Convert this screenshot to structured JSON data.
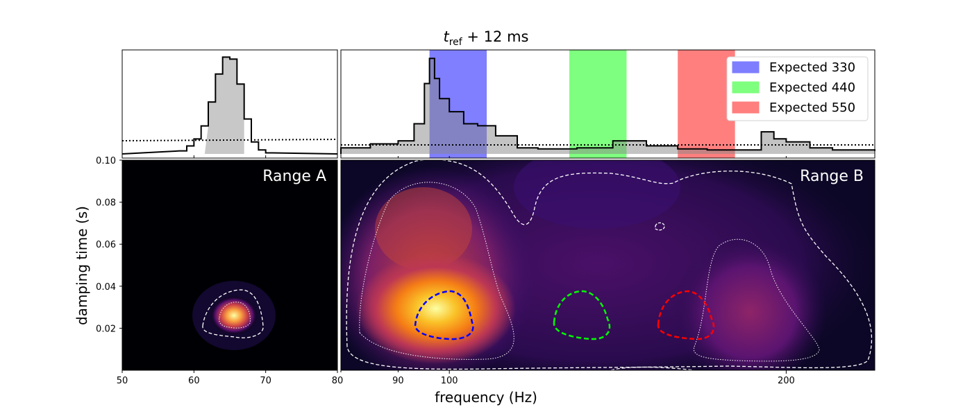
{
  "chart_data": {
    "type": "heatmap",
    "title_main": "t",
    "title_sub": "ref",
    "title_rest": " + 12 ms",
    "xlabel": "frequency (Hz)",
    "ylabel": "damping time (s)",
    "ylim": [
      0,
      0.1
    ],
    "y_ticks": [
      "0.02",
      "0.04",
      "0.06",
      "0.08",
      "0.10"
    ],
    "colormap": "inferno",
    "panel_a": {
      "label": "Range A",
      "xlim": [
        50,
        80
      ],
      "x_ticks": [
        "50",
        "60",
        "70",
        "80"
      ],
      "density_peak": {
        "frequency": 64.5,
        "damping_time": 0.026
      },
      "marginal_histogram": {
        "bins_hz": [
          58,
          59,
          60,
          61,
          62,
          63,
          64,
          65,
          66,
          67,
          68,
          69,
          70
        ],
        "density": [
          0.03,
          0.08,
          0.15,
          0.28,
          0.52,
          0.8,
          0.97,
          0.95,
          0.7,
          0.35,
          0.12,
          0.04,
          0.01
        ],
        "credible_interval_hz": [
          61.5,
          67
        ]
      }
    },
    "panel_b": {
      "label": "Range B",
      "xlim": [
        80,
        240
      ],
      "x_ticks": [
        "80",
        "90",
        "100",
        "200"
      ],
      "x_scale": "log",
      "density_peak": {
        "frequency": 98,
        "damping_time": 0.027
      },
      "marginal_histogram": {
        "bins_hz": [
          80,
          85,
          90,
          93,
          95,
          96,
          97,
          98,
          100,
          103,
          106,
          110,
          115,
          120,
          130,
          140,
          150,
          160,
          170,
          180,
          190,
          195,
          200,
          210,
          220,
          240
        ],
        "density": [
          0.06,
          0.1,
          0.13,
          0.3,
          0.7,
          0.95,
          0.75,
          0.55,
          0.42,
          0.3,
          0.28,
          0.18,
          0.06,
          0.05,
          0.06,
          0.13,
          0.08,
          0.05,
          0.04,
          0.04,
          0.22,
          0.15,
          0.12,
          0.06,
          0.04,
          0.03
        ]
      }
    },
    "legend": [
      {
        "label": "Expected 330",
        "color": "#0000ff",
        "band_hz": [
          96,
          108
        ]
      },
      {
        "label": "Expected 440",
        "color": "#00ff00",
        "band_hz": [
          128,
          144
        ]
      },
      {
        "label": "Expected 550",
        "color": "#ff0000",
        "band_hz": [
          160,
          180
        ]
      }
    ],
    "legend_position": "top-right"
  }
}
